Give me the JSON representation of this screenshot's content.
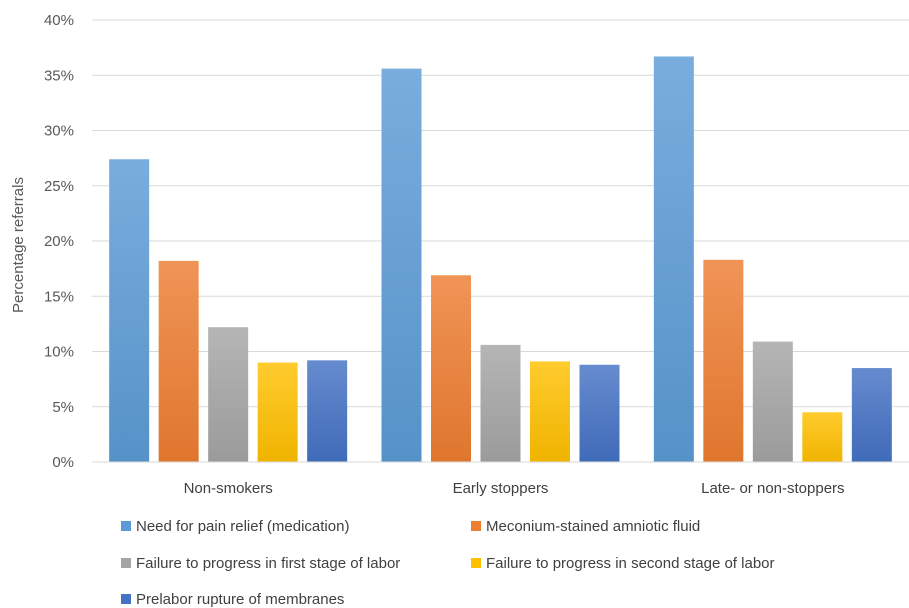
{
  "chart_data": {
    "type": "bar",
    "ylabel": "Percentage referrals",
    "ylim": [
      0,
      40
    ],
    "y_ticks": [
      "0%",
      "5%",
      "10%",
      "15%",
      "20%",
      "25%",
      "30%",
      "35%",
      "40%"
    ],
    "grid": true,
    "legend_position": "bottom",
    "categories": [
      "Non-smokers",
      "Early stoppers",
      "Late- or non-stoppers"
    ],
    "series": [
      {
        "name": "Need for pain relief (medication)",
        "color": "#5B9BD5",
        "values": [
          27.4,
          35.6,
          36.7
        ]
      },
      {
        "name": "Meconium-stained amniotic fluid",
        "color": "#ED7D31",
        "values": [
          18.2,
          16.9,
          18.3
        ]
      },
      {
        "name": "Failure to progress in first stage of labor",
        "color": "#A5A5A5",
        "values": [
          12.2,
          10.6,
          10.9
        ]
      },
      {
        "name": "Failure to progress in second stage of labor",
        "color": "#FFC000",
        "values": [
          9.0,
          9.1,
          4.5
        ]
      },
      {
        "name": "Prelabor rupture of membranes",
        "color": "#4472C4",
        "values": [
          9.2,
          8.8,
          8.5
        ]
      }
    ]
  }
}
